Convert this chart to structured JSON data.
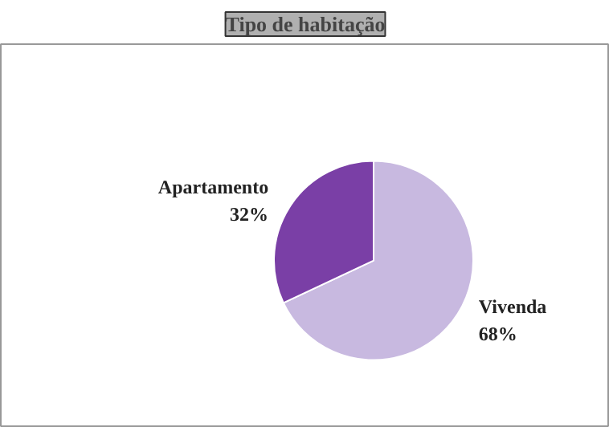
{
  "chart_data": {
    "type": "pie",
    "title": "Tipo de habitação",
    "categories": [
      "Vivenda",
      "Apartamento"
    ],
    "values": [
      68,
      32
    ],
    "colors": [
      "#c8b9e0",
      "#7a3fa6"
    ],
    "value_labels": [
      "68%",
      "32%"
    ]
  }
}
